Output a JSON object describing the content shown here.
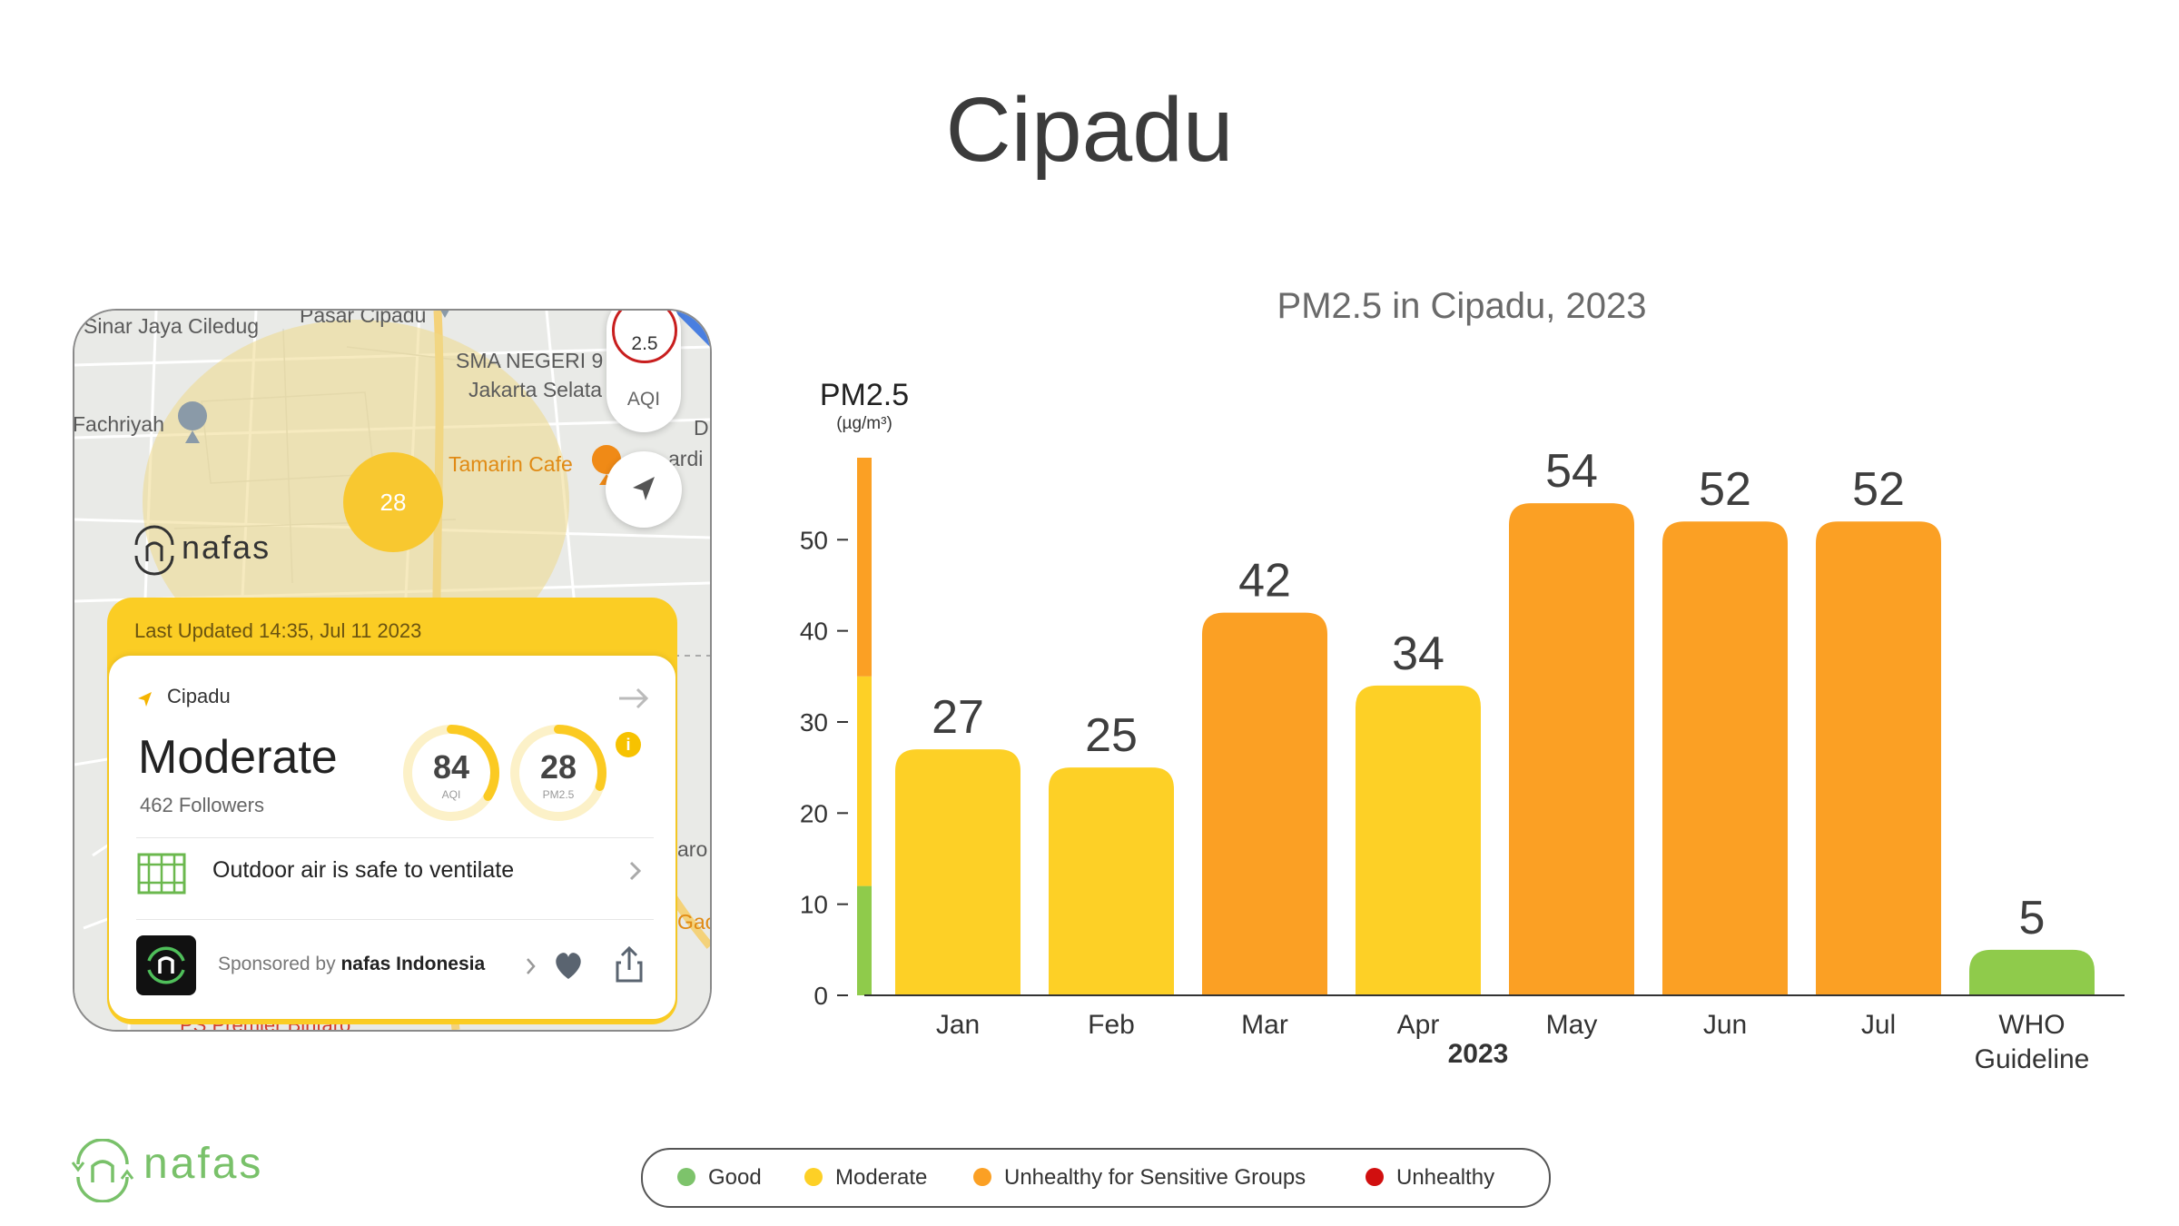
{
  "title": "Cipadu",
  "map": {
    "labels": [
      "Sinar Jaya Ciledug",
      "Pasar Cipadu",
      "SMA NEGERI 9",
      "Jakarta Selata",
      "Fachriyah",
      "Tamarin Cafe",
      "D",
      "ardi",
      "aro",
      "Gac",
      "PS Premier Bintaro"
    ],
    "pollutant_badge": "2.5",
    "aqi_button_label": "AQI",
    "bubble_value": "28",
    "brand": "nafas",
    "last_updated": "Last Updated 14:35, Jul 11 2023",
    "location": "Cipadu",
    "status": "Moderate",
    "followers": "462 Followers",
    "aqi_value": "84",
    "aqi_unit": "AQI",
    "aqi_fraction": 0.34,
    "pm25_value": "28",
    "pm25_unit": "PM2.5",
    "pm25_fraction": 0.3,
    "info_icon": "i",
    "advice": "Outdoor air is safe to ventilate",
    "sponsored_by": "Sponsored by",
    "sponsor_name": "nafas Indonesia",
    "colors": {
      "status_yellow": "#fbcd24",
      "bubble": "#f8c830"
    }
  },
  "chart_data": {
    "type": "bar",
    "title": "PM2.5 in Cipadu, 2023",
    "ylabel": "PM2.5",
    "yunit": "(µg/m³)",
    "xlabel": "2023",
    "categories": [
      "Jan",
      "Feb",
      "Mar",
      "Apr",
      "May",
      "Jun",
      "Jul",
      "WHO Guideline"
    ],
    "values": [
      27,
      25,
      42,
      34,
      54,
      52,
      52,
      5
    ],
    "colors": [
      "#fdd026",
      "#fdd026",
      "#fba024",
      "#fdd026",
      "#fba024",
      "#fba024",
      "#fba024",
      "#8fcb4b"
    ],
    "ylim": [
      0,
      59
    ],
    "yticks": [
      0,
      10,
      20,
      30,
      40,
      50
    ],
    "scale_bands": [
      {
        "from": 0,
        "to": 12,
        "color": "#8fcb4b"
      },
      {
        "from": 12,
        "to": 35,
        "color": "#fdd026"
      },
      {
        "from": 35,
        "to": 59,
        "color": "#fba024"
      }
    ],
    "grid": false
  },
  "legend": [
    {
      "label": "Good",
      "color": "#7dc36b"
    },
    {
      "label": "Moderate",
      "color": "#fdd026"
    },
    {
      "label": "Unhealthy for  Sensitive Groups",
      "color": "#fba024"
    },
    {
      "label": "Unhealthy",
      "color": "#d10f0f"
    }
  ],
  "footer_brand": "nafas"
}
